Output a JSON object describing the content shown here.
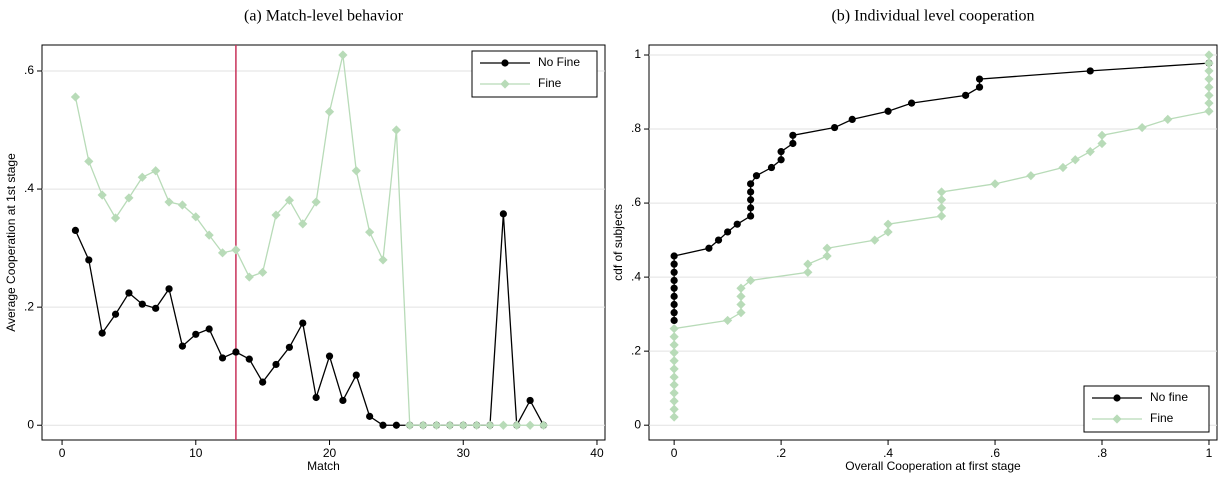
{
  "chart_data": [
    {
      "type": "line",
      "title": "(a) Match-level behavior",
      "xlabel": "Match",
      "ylabel": "Average Cooperation at 1st stage",
      "x": [
        1,
        2,
        3,
        4,
        5,
        6,
        7,
        8,
        9,
        10,
        11,
        12,
        13,
        14,
        15,
        16,
        17,
        18,
        19,
        20,
        21,
        22,
        23,
        24,
        25,
        26,
        27,
        28,
        29,
        30,
        31,
        32,
        33,
        34,
        35,
        36
      ],
      "series": [
        {
          "name": "No Fine",
          "color": "#000000",
          "marker": "circle",
          "values": [
            0.33,
            0.28,
            0.156,
            0.188,
            0.224,
            0.205,
            0.198,
            0.231,
            0.134,
            0.154,
            0.163,
            0.114,
            0.124,
            0.112,
            0.073,
            0.103,
            0.132,
            0.173,
            0.047,
            0.117,
            0.042,
            0.085,
            0.015,
            0,
            0,
            0,
            0,
            0,
            0,
            0,
            0,
            0,
            0.358,
            0,
            0.042,
            0
          ]
        },
        {
          "name": "Fine",
          "color": "#b8dbb8",
          "marker": "diamond",
          "values": [
            0.556,
            0.447,
            0.39,
            0.351,
            0.385,
            0.42,
            0.431,
            0.378,
            0.373,
            0.353,
            0.322,
            0.292,
            0.297,
            0.251,
            0.259,
            0.356,
            0.381,
            0.341,
            0.378,
            0.531,
            0.627,
            0.431,
            0.327,
            0.28,
            0.5,
            0,
            0,
            0,
            0,
            0,
            0,
            0,
            0,
            0,
            0,
            0
          ]
        }
      ],
      "reference_lines": [
        {
          "x": 13,
          "color": "#c8325a"
        }
      ],
      "xlim": [
        -1.5,
        40.6
      ],
      "ylim": [
        -0.025,
        0.644
      ],
      "xticks": [
        0,
        10,
        20,
        30,
        40
      ],
      "yticks": [
        0,
        {
          "value": 0.2,
          "label": ".2"
        },
        {
          "value": 0.4,
          "label": ".4"
        },
        {
          "value": 0.6,
          "label": ".6"
        }
      ],
      "grid": true,
      "legend": "upper right"
    },
    {
      "type": "line",
      "title": "(b) Individual level cooperation",
      "xlabel": "Overall Cooperation at first stage",
      "ylabel": "cdf of subjects",
      "series": [
        {
          "name": "No fine",
          "color": "#000000",
          "marker": "circle",
          "x": [
            0,
            0,
            0,
            0,
            0,
            0,
            0,
            0,
            0,
            0.065,
            0.083,
            0.1,
            0.118,
            0.143,
            0.143,
            0.143,
            0.143,
            0.143,
            0.154,
            0.182,
            0.2,
            0.2,
            0.222,
            0.222,
            0.3,
            0.333,
            0.4,
            0.444,
            0.545,
            0.571,
            0.571,
            0.778,
            1
          ],
          "values": [
            0.283,
            0.304,
            0.326,
            0.348,
            0.37,
            0.391,
            0.413,
            0.435,
            0.457,
            0.478,
            0.5,
            0.522,
            0.543,
            0.565,
            0.587,
            0.609,
            0.63,
            0.652,
            0.674,
            0.696,
            0.717,
            0.739,
            0.761,
            0.783,
            0.804,
            0.826,
            0.848,
            0.87,
            0.891,
            0.913,
            0.935,
            0.957,
            0.978
          ]
        },
        {
          "name": "Fine",
          "color": "#b8dbb8",
          "marker": "diamond",
          "x": [
            0,
            0,
            0,
            0,
            0,
            0,
            0,
            0,
            0,
            0,
            0,
            0,
            0.1,
            0.125,
            0.125,
            0.125,
            0.125,
            0.143,
            0.25,
            0.25,
            0.286,
            0.286,
            0.375,
            0.4,
            0.4,
            0.5,
            0.5,
            0.5,
            0.5,
            0.6,
            0.667,
            0.727,
            0.75,
            0.778,
            0.8,
            0.8,
            0.875,
            0.923,
            1,
            1,
            1,
            1,
            1,
            1,
            1,
            1
          ],
          "values": [
            0.022,
            0.043,
            0.065,
            0.087,
            0.109,
            0.13,
            0.152,
            0.174,
            0.196,
            0.217,
            0.239,
            0.261,
            0.283,
            0.304,
            0.326,
            0.348,
            0.37,
            0.391,
            0.413,
            0.435,
            0.457,
            0.478,
            0.5,
            0.522,
            0.543,
            0.565,
            0.587,
            0.609,
            0.63,
            0.652,
            0.674,
            0.696,
            0.717,
            0.739,
            0.761,
            0.783,
            0.804,
            0.826,
            0.848,
            0.87,
            0.891,
            0.913,
            0.935,
            0.957,
            0.978,
            1.0
          ]
        }
      ],
      "xlim": [
        -0.047,
        1.015
      ],
      "ylim": [
        -0.04,
        1.027
      ],
      "xticks": [
        0,
        {
          "value": 0.2,
          "label": ".2"
        },
        {
          "value": 0.4,
          "label": ".4"
        },
        {
          "value": 0.6,
          "label": ".6"
        },
        {
          "value": 0.8,
          "label": ".8"
        },
        1
      ],
      "yticks": [
        0,
        {
          "value": 0.2,
          "label": ".2"
        },
        {
          "value": 0.4,
          "label": ".4"
        },
        {
          "value": 0.6,
          "label": ".6"
        },
        {
          "value": 0.8,
          "label": ".8"
        },
        1
      ],
      "grid": true,
      "legend": "lower right"
    }
  ]
}
